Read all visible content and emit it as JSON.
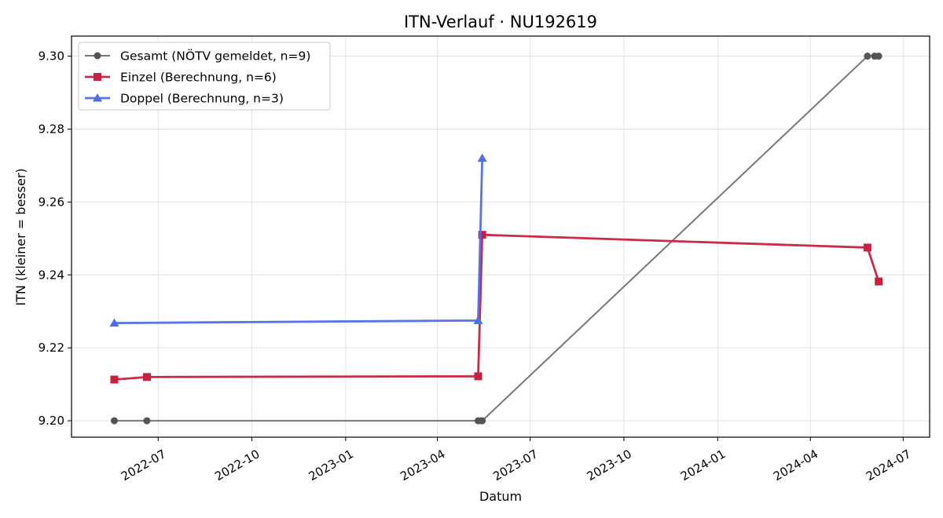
{
  "chart_data": {
    "type": "line",
    "title": "ITN-Verlauf · NU192619",
    "xlabel": "Datum",
    "ylabel": "ITN  (kleiner = besser)",
    "x_type": "date",
    "xlim": [
      "2022-04-07",
      "2024-07-27"
    ],
    "ylim": [
      9.1955,
      9.3055
    ],
    "x_ticks": [
      "2022-07-01",
      "2022-10-01",
      "2023-01-01",
      "2023-04-01",
      "2023-07-01",
      "2023-10-01",
      "2024-01-01",
      "2024-04-01",
      "2024-07-01"
    ],
    "x_tick_labels": [
      "2022-07",
      "2022-10",
      "2023-01",
      "2023-04",
      "2023-07",
      "2023-10",
      "2024-01",
      "2024-04",
      "2024-07"
    ],
    "y_ticks": [
      9.2,
      9.22,
      9.24,
      9.26,
      9.28,
      9.3
    ],
    "y_tick_labels": [
      "9.20",
      "9.22",
      "9.24",
      "9.26",
      "9.28",
      "9.30"
    ],
    "grid": true,
    "legend_position": "top-left",
    "series": [
      {
        "name": "Gesamt (NÖTV gemeldet, n=9)",
        "color": "#555555",
        "marker": "circle",
        "points": [
          {
            "x": "2022-05-19",
            "y": 9.2
          },
          {
            "x": "2022-06-20",
            "y": 9.2
          },
          {
            "x": "2023-05-11",
            "y": 9.2
          },
          {
            "x": "2023-05-14",
            "y": 9.2
          },
          {
            "x": "2023-05-15",
            "y": 9.2
          },
          {
            "x": "2024-05-27",
            "y": 9.3
          },
          {
            "x": "2024-06-03",
            "y": 9.3
          },
          {
            "x": "2024-06-07",
            "y": 9.3
          }
        ]
      },
      {
        "name": "Einzel (Berechnung, n=6)",
        "color": "#c8203e",
        "marker": "square",
        "points": [
          {
            "x": "2022-05-19",
            "y": 9.2113
          },
          {
            "x": "2022-06-20",
            "y": 9.212
          },
          {
            "x": "2023-05-11",
            "y": 9.2122
          },
          {
            "x": "2023-05-15",
            "y": 9.251
          },
          {
            "x": "2024-05-27",
            "y": 9.2475
          },
          {
            "x": "2024-06-07",
            "y": 9.2382
          }
        ]
      },
      {
        "name": "Doppel (Berechnung, n=3)",
        "color": "#4f6de8",
        "marker": "triangle",
        "points": [
          {
            "x": "2022-05-19",
            "y": 9.2268
          },
          {
            "x": "2023-05-11",
            "y": 9.2275
          },
          {
            "x": "2023-05-15",
            "y": 9.272
          }
        ]
      }
    ]
  }
}
